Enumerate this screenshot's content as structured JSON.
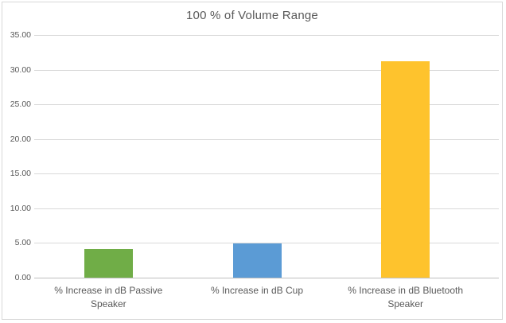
{
  "chart_data": {
    "type": "bar",
    "title": "100 % of Volume Range",
    "categories": [
      "% Increase in dB Passive Speaker",
      "% Increase in dB Cup",
      "% Increase in dB Bluetooth Speaker"
    ],
    "values": [
      4.1,
      4.9,
      31.2
    ],
    "bar_colors": [
      "#70AD47",
      "#5B9BD5",
      "#FEC32D"
    ],
    "xlabel": "",
    "ylabel": "",
    "ylim": [
      0,
      35
    ],
    "ytick_step": 5,
    "ytick_decimals": 2,
    "grid": true,
    "legend_position": "none"
  },
  "colors": {
    "text": "#595959",
    "gridline": "#D9D9D9",
    "axis_line": "#BFBFBF",
    "frame_border": "#D9D9D9",
    "background": "#FFFFFF"
  }
}
